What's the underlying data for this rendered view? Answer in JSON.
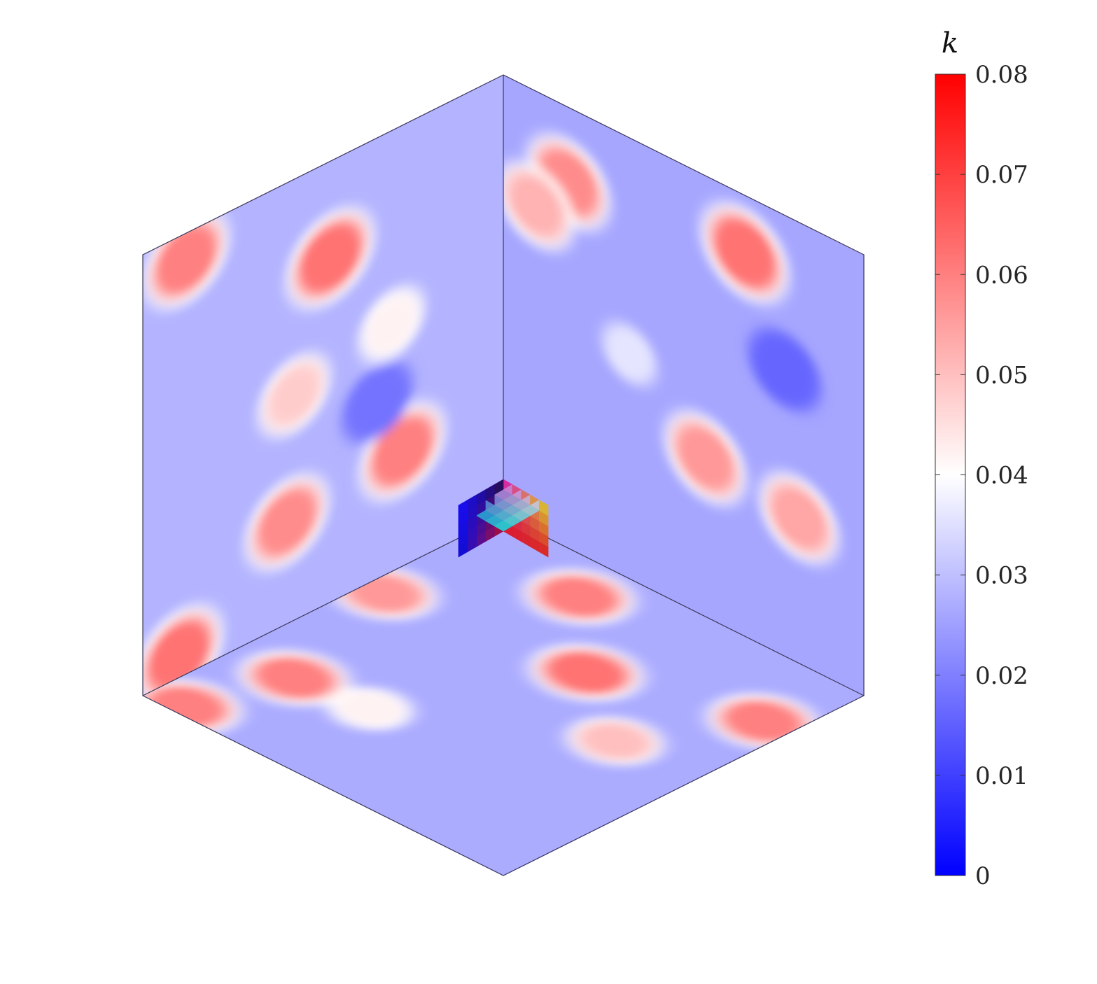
{
  "chart_data": {
    "type": "heatmap",
    "title": "",
    "colorbar": {
      "label": "k",
      "range": [
        0,
        0.08
      ],
      "ticks": [
        0,
        0.01,
        0.02,
        0.03,
        0.04,
        0.05,
        0.06,
        0.07,
        0.08
      ],
      "tick_labels": [
        "0",
        "0.01",
        "0.02",
        "0.03",
        "0.04",
        "0.05",
        "0.06",
        "0.07",
        "0.08"
      ],
      "colors": {
        "low": "#0000ff",
        "mid": "#ffffff",
        "high": "#ff0000"
      },
      "placement": "right"
    },
    "faces": [
      {
        "name": "left face",
        "background_value": 0.028,
        "features": [
          {
            "u": 0.52,
            "v": 0.22,
            "value": 0.062
          },
          {
            "u": 0.12,
            "v": 0.06,
            "value": 0.06
          },
          {
            "u": 0.42,
            "v": 0.49,
            "value": 0.048
          },
          {
            "u": 0.4,
            "v": 0.77,
            "value": 0.058
          },
          {
            "u": 0.72,
            "v": 0.74,
            "value": 0.06
          },
          {
            "u": 0.69,
            "v": 0.44,
            "value": 0.042
          },
          {
            "u": 0.65,
            "v": 0.6,
            "value": 0.018
          },
          {
            "u": 0.1,
            "v": 0.95,
            "value": 0.062
          }
        ]
      },
      {
        "name": "right face",
        "background_value": 0.026,
        "features": [
          {
            "u": 0.18,
            "v": 0.17,
            "value": 0.058
          },
          {
            "u": 0.09,
            "v": 0.26,
            "value": 0.052
          },
          {
            "u": 0.67,
            "v": 0.13,
            "value": 0.062
          },
          {
            "u": 0.56,
            "v": 0.64,
            "value": 0.056
          },
          {
            "u": 0.82,
            "v": 0.67,
            "value": 0.054
          },
          {
            "u": 0.35,
            "v": 0.49,
            "value": 0.036
          },
          {
            "u": 0.78,
            "v": 0.35,
            "value": 0.016
          }
        ]
      },
      {
        "name": "bottom face",
        "background_value": 0.027,
        "features": [
          {
            "u": 0.55,
            "v": 0.32,
            "value": 0.062
          },
          {
            "u": 0.33,
            "v": 0.12,
            "value": 0.06
          },
          {
            "u": 0.05,
            "v": 0.38,
            "value": 0.056
          },
          {
            "u": 0.78,
            "v": 0.47,
            "value": 0.05
          },
          {
            "u": 0.93,
            "v": 0.21,
            "value": 0.06
          },
          {
            "u": 0.09,
            "v": 0.97,
            "value": 0.06
          },
          {
            "u": 0.16,
            "v": 0.74,
            "value": 0.06
          },
          {
            "u": 0.35,
            "v": 0.72,
            "value": 0.042
          }
        ]
      }
    ],
    "inset": {
      "description_label": "",
      "grid": 5
    }
  }
}
